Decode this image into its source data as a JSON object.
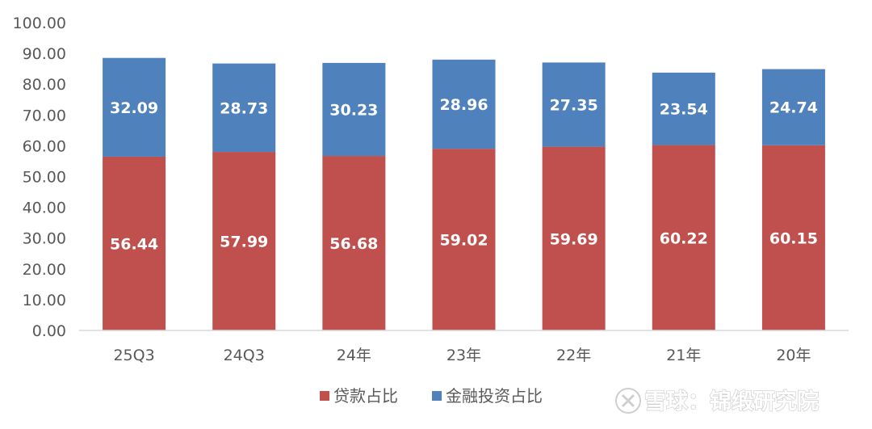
{
  "chart_data": {
    "type": "bar",
    "stacked": true,
    "categories": [
      "25Q3",
      "24Q3",
      "24年",
      "23年",
      "22年",
      "21年",
      "20年"
    ],
    "series": [
      {
        "name": "贷款占比",
        "color": "#C0504D",
        "values": [
          56.44,
          57.99,
          56.68,
          59.02,
          59.69,
          60.22,
          60.15
        ]
      },
      {
        "name": "金融投资占比",
        "color": "#4F81BD",
        "values": [
          32.09,
          28.73,
          30.23,
          28.96,
          27.35,
          23.54,
          24.74
        ]
      }
    ],
    "ylim": [
      0,
      100
    ],
    "yticks": [
      "0.00",
      "10.00",
      "20.00",
      "30.00",
      "40.00",
      "50.00",
      "60.00",
      "70.00",
      "80.00",
      "90.00",
      "100.00"
    ],
    "grid": false,
    "legend_position": "bottom"
  },
  "watermark": {
    "text": "雪球：锦缎研究院"
  }
}
